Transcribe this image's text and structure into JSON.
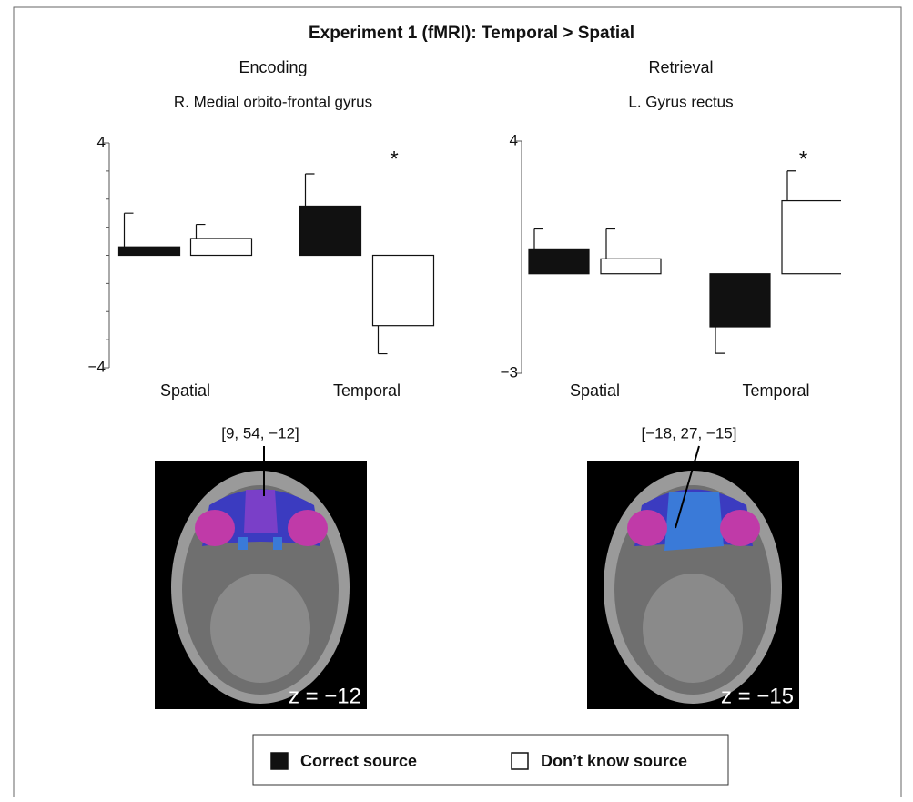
{
  "title": "Experiment 1 (fMRI): Temporal > Spatial",
  "chart_data": [
    {
      "type": "bar",
      "title": "Encoding",
      "subtitle": "R. Medial orbito-frontal gyrus",
      "categories": [
        "Spatial",
        "Temporal"
      ],
      "series": [
        {
          "name": "Correct source",
          "color": "#111111",
          "values": [
            0.3,
            1.75
          ],
          "errors": [
            1.2,
            1.15
          ]
        },
        {
          "name": "Don’t know source",
          "color": "#ffffff",
          "values": [
            0.6,
            -2.5
          ],
          "errors": [
            0.5,
            1.0
          ]
        }
      ],
      "ylim": [
        -4,
        4
      ],
      "yticks": [
        {
          "value": 4,
          "label": "4"
        },
        {
          "value": -4,
          "label": "−4"
        }
      ],
      "yminorticks": [
        -3,
        -2,
        -1,
        0,
        1,
        2,
        3
      ],
      "annotations": [
        {
          "text": "*",
          "category": 1
        }
      ]
    },
    {
      "type": "bar",
      "title": "Retrieval",
      "subtitle": "L. Gyrus rectus",
      "categories": [
        "Spatial",
        "Temporal"
      ],
      "series": [
        {
          "color": "#111111",
          "values": [
            0.75,
            -1.6
          ],
          "errors": [
            0.6,
            0.8
          ]
        },
        {
          "color": "#ffffff",
          "values": [
            0.45,
            2.2
          ],
          "errors": [
            0.9,
            0.9
          ]
        }
      ],
      "ylim": [
        -3,
        4
      ],
      "yticks": [
        {
          "value": 4,
          "label": "4"
        },
        {
          "value": -3,
          "label": "−3"
        }
      ],
      "annotations": [
        {
          "text": "*",
          "category": 1
        }
      ]
    }
  ],
  "images": [
    {
      "coordinate": "[9, 54, −12]",
      "slice": "z = −12"
    },
    {
      "coordinate": "[−18, 27, −15]",
      "slice": "z = −15"
    }
  ]
}
